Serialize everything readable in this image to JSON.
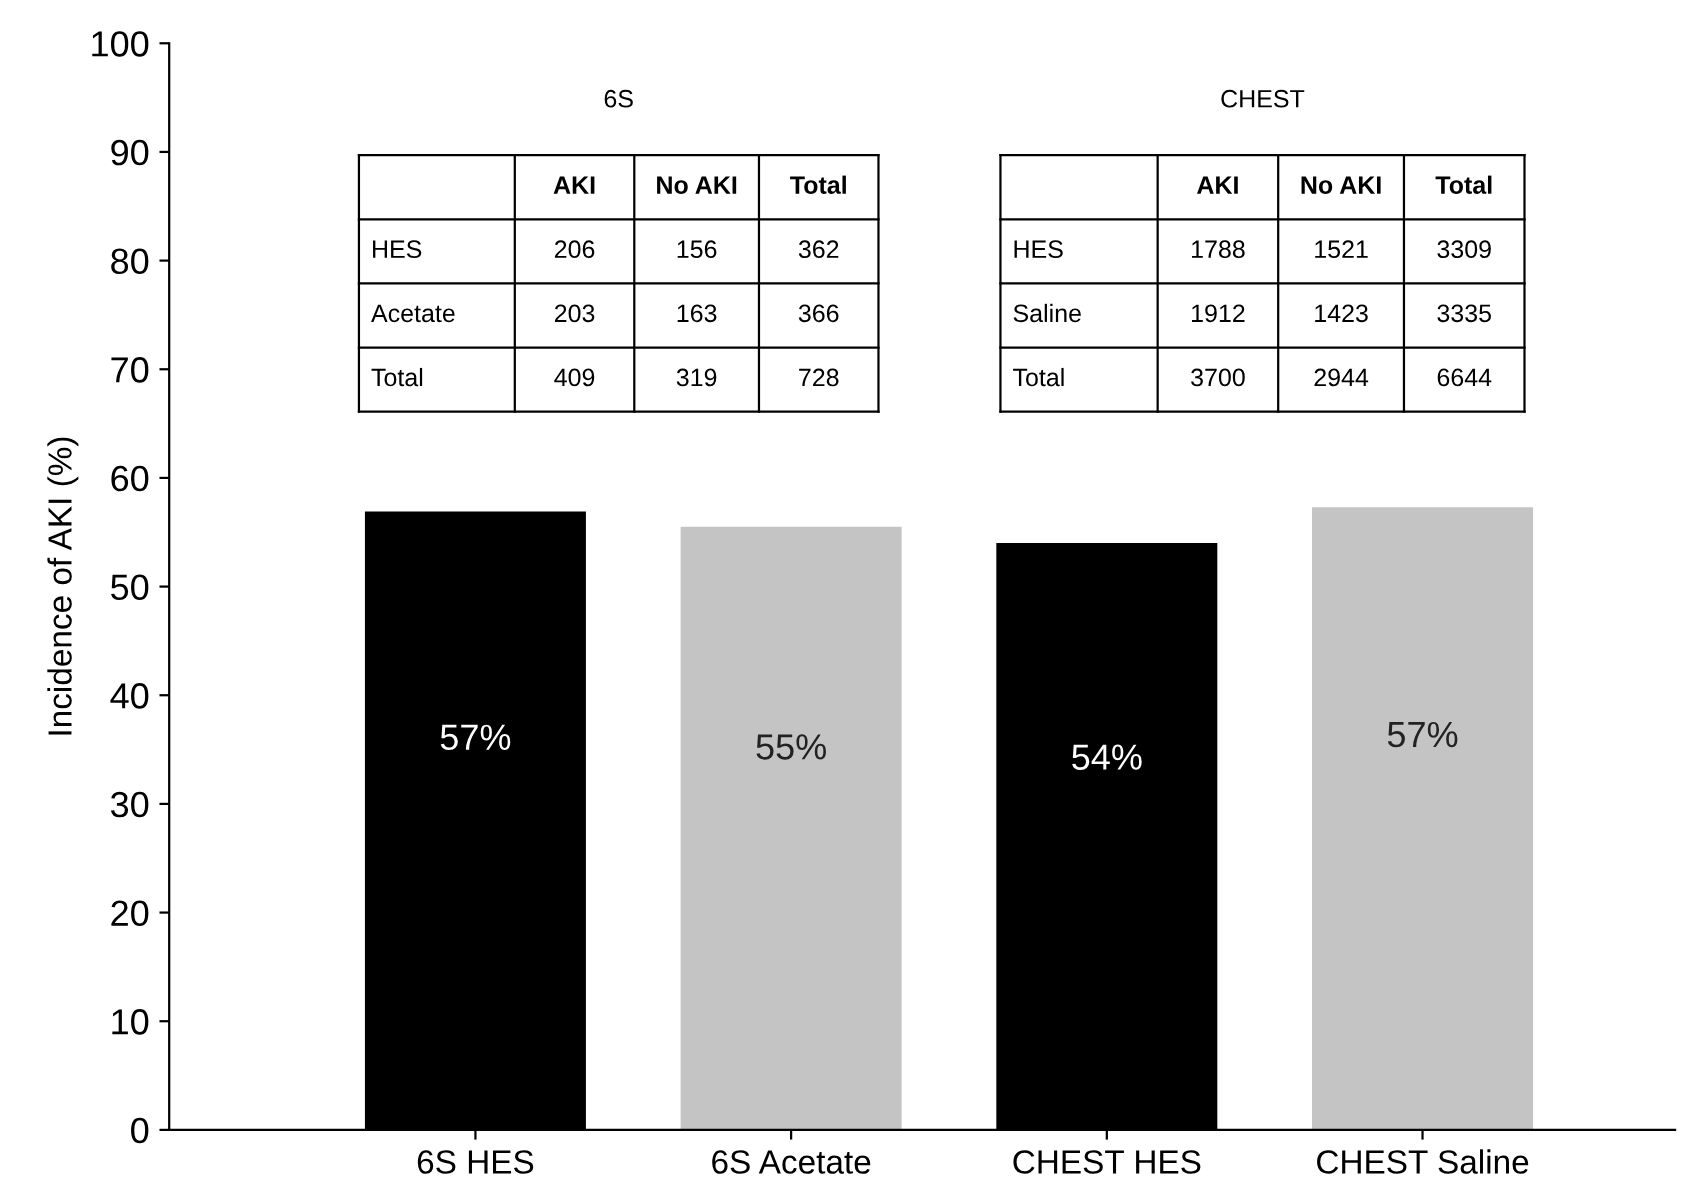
{
  "chart_data": {
    "type": "bar",
    "ylabel": "Incidence of AKI (%)",
    "categories": [
      "6S HES",
      "6S Acetate",
      "CHEST HES",
      "CHEST Saline"
    ],
    "values": [
      56.9,
      55.5,
      54.0,
      57.3
    ],
    "colors": [
      "#000000",
      "#c4c4c4",
      "#000000",
      "#c4c4c4"
    ],
    "value_labels": [
      "57%",
      "55%",
      "54%",
      "57%"
    ],
    "ylim": [
      0,
      100
    ],
    "yticks": [
      0,
      10,
      20,
      30,
      40,
      50,
      60,
      70,
      80,
      90,
      100
    ],
    "grid": false,
    "annotations": [
      "6S",
      "AKI",
      "No AKI",
      "Total",
      "HES",
      "206",
      "156",
      "362",
      "Acetate",
      "203",
      "163",
      "366",
      "Total",
      "409",
      "319",
      "728",
      "CHEST",
      "AKI",
      "No AKI",
      "Total",
      "HES",
      "1788",
      "1521",
      "3309",
      "Saline",
      "1912",
      "1423",
      "3335",
      "Total",
      "3700",
      "2944",
      "6644"
    ]
  }
}
